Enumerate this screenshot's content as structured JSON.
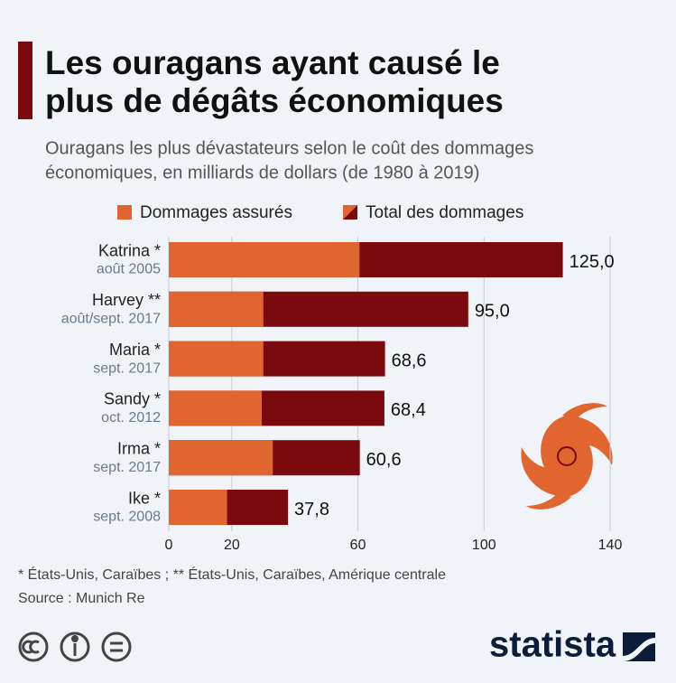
{
  "chart_data": {
    "type": "bar",
    "orientation": "horizontal",
    "title": [
      "Les ouragans ayant causé le",
      "plus de dégâts économiques"
    ],
    "subtitle": [
      "Ouragans les plus dévastateurs selon le coût des dommages",
      "économiques, en milliards de dollars (de 1980 à 2019)"
    ],
    "categories": [
      "Katrina *",
      "Harvey **",
      "Maria *",
      "Sandy *",
      "Irma *",
      "Ike *"
    ],
    "sublabels": [
      "août 2005",
      "août/sept. 2017",
      "sept. 2017",
      "oct. 2012",
      "sept. 2017",
      "sept. 2008"
    ],
    "series": [
      {
        "name": "Total des dommages",
        "color": "#7b0a0f",
        "values": [
          125.0,
          95.0,
          68.6,
          68.4,
          60.6,
          37.8
        ],
        "value_labels": [
          "125,0",
          "95,0",
          "68,6",
          "68,4",
          "60,6",
          "37,8"
        ]
      },
      {
        "name": "Dommages assurés",
        "color": "#e0652f",
        "values": [
          60.5,
          30,
          30,
          29.5,
          33,
          18.5
        ]
      }
    ],
    "xlim": [
      0,
      140
    ],
    "xticks": [
      0,
      20,
      60,
      100,
      140
    ],
    "grid": true,
    "footnote": "* États-Unis, Caraïbes ; ** États-Unis, Caraïbes, Amérique centrale",
    "source": "Source : Munich Re",
    "brand": "statista"
  }
}
